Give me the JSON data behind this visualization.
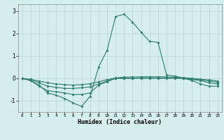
{
  "x": [
    0,
    1,
    2,
    3,
    4,
    5,
    6,
    7,
    8,
    9,
    10,
    11,
    12,
    13,
    14,
    15,
    16,
    17,
    18,
    19,
    20,
    21,
    22,
    23
  ],
  "line1": [
    0.0,
    -0.1,
    -0.3,
    -0.65,
    -0.75,
    -0.9,
    -1.1,
    -1.25,
    -0.8,
    0.5,
    1.25,
    2.75,
    2.85,
    2.5,
    2.05,
    1.65,
    1.6,
    0.15,
    0.1,
    0.0,
    -0.1,
    -0.25,
    -0.35,
    -0.35
  ],
  "line2": [
    0.0,
    -0.1,
    -0.35,
    -0.55,
    -0.6,
    -0.65,
    -0.72,
    -0.72,
    -0.65,
    -0.3,
    -0.15,
    0.0,
    0.0,
    0.0,
    0.0,
    0.0,
    0.0,
    0.0,
    0.0,
    0.0,
    -0.05,
    -0.1,
    -0.2,
    -0.25
  ],
  "line3": [
    0.0,
    -0.05,
    -0.2,
    -0.35,
    -0.4,
    -0.45,
    -0.45,
    -0.42,
    -0.38,
    -0.25,
    -0.12,
    0.0,
    0.0,
    0.0,
    0.02,
    0.02,
    0.02,
    0.02,
    0.02,
    0.0,
    -0.03,
    -0.07,
    -0.12,
    -0.18
  ],
  "line4": [
    0.0,
    -0.05,
    -0.12,
    -0.2,
    -0.25,
    -0.28,
    -0.3,
    -0.28,
    -0.24,
    -0.15,
    -0.06,
    0.02,
    0.05,
    0.06,
    0.07,
    0.07,
    0.07,
    0.06,
    0.05,
    0.03,
    0.0,
    -0.04,
    -0.07,
    -0.12
  ],
  "color": "#2e7d6e",
  "bg_color": "#d6eeee",
  "grid_color": "#b8d4d4",
  "xlabel": "Humidex (Indice chaleur)",
  "ylim": [
    -1.5,
    3.3
  ],
  "xlim": [
    -0.5,
    23.5
  ],
  "yticks": [
    -1,
    0,
    1,
    2,
    3
  ],
  "xticks": [
    0,
    1,
    2,
    3,
    4,
    5,
    6,
    7,
    8,
    9,
    10,
    11,
    12,
    13,
    14,
    15,
    16,
    17,
    18,
    19,
    20,
    21,
    22,
    23
  ]
}
